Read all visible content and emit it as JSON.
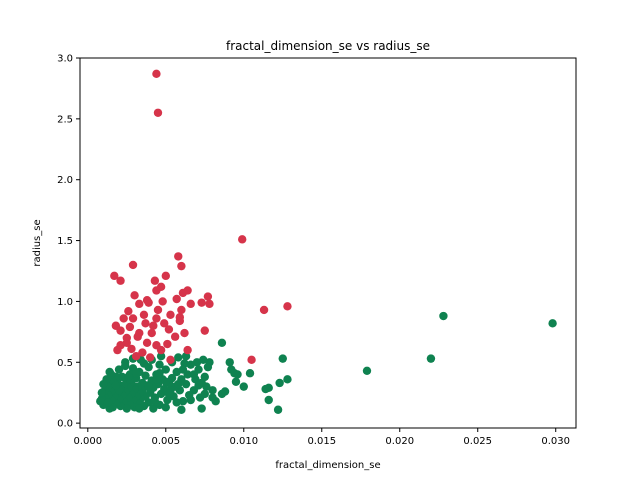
{
  "chart_data": {
    "type": "scatter",
    "title": "fractal_dimension_se vs radius_se",
    "xlabel": "fractal_dimension_se",
    "ylabel": "radius_se",
    "xlim": [
      -0.0005,
      0.0313
    ],
    "ylim": [
      -0.04,
      3.0
    ],
    "xticks": [
      {
        "value": 0.0,
        "label": "0.000"
      },
      {
        "value": 0.005,
        "label": "0.005"
      },
      {
        "value": 0.01,
        "label": "0.010"
      },
      {
        "value": 0.015,
        "label": "0.015"
      },
      {
        "value": 0.02,
        "label": "0.020"
      },
      {
        "value": 0.025,
        "label": "0.025"
      },
      {
        "value": 0.03,
        "label": "0.030"
      }
    ],
    "yticks": [
      {
        "value": 0.0,
        "label": "0.0"
      },
      {
        "value": 0.5,
        "label": "0.5"
      },
      {
        "value": 1.0,
        "label": "1.0"
      },
      {
        "value": 1.5,
        "label": "1.5"
      },
      {
        "value": 2.0,
        "label": "2.0"
      },
      {
        "value": 2.5,
        "label": "2.5"
      },
      {
        "value": 3.0,
        "label": "3.0"
      }
    ],
    "grid": false,
    "legend": "none",
    "series": [
      {
        "color": "#0f8250",
        "points": [
          [
            0.0298,
            0.82
          ],
          [
            0.0228,
            0.88
          ],
          [
            0.022,
            0.53
          ],
          [
            0.0179,
            0.43
          ],
          [
            0.0125,
            0.53
          ],
          [
            0.0128,
            0.36
          ],
          [
            0.0123,
            0.33
          ],
          [
            0.0122,
            0.11
          ],
          [
            0.0116,
            0.29
          ],
          [
            0.0114,
            0.28
          ],
          [
            0.0116,
            0.19
          ],
          [
            0.0104,
            0.41
          ],
          [
            0.01,
            0.3
          ],
          [
            0.0096,
            0.4
          ],
          [
            0.0095,
            0.34
          ],
          [
            0.0094,
            0.41
          ],
          [
            0.0092,
            0.44
          ],
          [
            0.0091,
            0.5
          ],
          [
            0.0088,
            0.26
          ],
          [
            0.0086,
            0.66
          ],
          [
            0.0086,
            0.24
          ],
          [
            0.0082,
            0.18
          ],
          [
            0.008,
            0.21
          ],
          [
            0.008,
            0.27
          ],
          [
            0.0078,
            0.5
          ],
          [
            0.0077,
            0.46
          ],
          [
            0.0076,
            0.3
          ],
          [
            0.0075,
            0.38
          ],
          [
            0.0074,
            0.52
          ],
          [
            0.0073,
            0.12
          ],
          [
            0.0073,
            0.33
          ],
          [
            0.0072,
            0.21
          ],
          [
            0.0071,
            0.44
          ],
          [
            0.007,
            0.5
          ],
          [
            0.0069,
            0.36
          ],
          [
            0.0068,
            0.27
          ],
          [
            0.0066,
            0.48
          ],
          [
            0.0065,
            0.23
          ],
          [
            0.0064,
            0.4
          ],
          [
            0.0063,
            0.32
          ],
          [
            0.0062,
            0.49
          ],
          [
            0.0061,
            0.18
          ],
          [
            0.006,
            0.36
          ],
          [
            0.006,
            0.11
          ],
          [
            0.0059,
            0.27
          ],
          [
            0.0058,
            0.54
          ],
          [
            0.0057,
            0.42
          ],
          [
            0.0056,
            0.3
          ],
          [
            0.0055,
            0.22
          ],
          [
            0.0054,
            0.37
          ],
          [
            0.0054,
            0.5
          ],
          [
            0.0053,
            0.27
          ],
          [
            0.0052,
            0.33
          ],
          [
            0.0051,
            0.19
          ],
          [
            0.005,
            0.44
          ],
          [
            0.005,
            0.13
          ],
          [
            0.0049,
            0.28
          ],
          [
            0.0048,
            0.36
          ],
          [
            0.0047,
            0.24
          ],
          [
            0.0046,
            0.48
          ],
          [
            0.0046,
            0.15
          ],
          [
            0.0045,
            0.32
          ],
          [
            0.0044,
            0.4
          ],
          [
            0.0043,
            0.21
          ],
          [
            0.0042,
            0.29
          ],
          [
            0.0042,
            0.12
          ],
          [
            0.0041,
            0.35
          ],
          [
            0.004,
            0.25
          ],
          [
            0.0039,
            0.46
          ],
          [
            0.0039,
            0.17
          ],
          [
            0.0038,
            0.31
          ],
          [
            0.0037,
            0.22
          ],
          [
            0.0037,
            0.39
          ],
          [
            0.0036,
            0.14
          ],
          [
            0.0035,
            0.27
          ],
          [
            0.0035,
            0.33
          ],
          [
            0.0034,
            0.2
          ],
          [
            0.0033,
            0.42
          ],
          [
            0.0033,
            0.25
          ],
          [
            0.0032,
            0.16
          ],
          [
            0.0032,
            0.3
          ],
          [
            0.0031,
            0.37
          ],
          [
            0.0031,
            0.22
          ],
          [
            0.003,
            0.13
          ],
          [
            0.003,
            0.28
          ],
          [
            0.0029,
            0.45
          ],
          [
            0.0029,
            0.19
          ],
          [
            0.0028,
            0.33
          ],
          [
            0.0028,
            0.24
          ],
          [
            0.0027,
            0.15
          ],
          [
            0.0027,
            0.4
          ],
          [
            0.0026,
            0.29
          ],
          [
            0.0026,
            0.21
          ],
          [
            0.0025,
            0.35
          ],
          [
            0.0025,
            0.12
          ],
          [
            0.0024,
            0.26
          ],
          [
            0.0024,
            0.5
          ],
          [
            0.0023,
            0.18
          ],
          [
            0.0023,
            0.31
          ],
          [
            0.0022,
            0.23
          ],
          [
            0.0022,
            0.38
          ],
          [
            0.0021,
            0.14
          ],
          [
            0.0021,
            0.28
          ],
          [
            0.002,
            0.2
          ],
          [
            0.002,
            0.44
          ],
          [
            0.0019,
            0.33
          ],
          [
            0.0019,
            0.25
          ],
          [
            0.0018,
            0.16
          ],
          [
            0.0018,
            0.38
          ],
          [
            0.0017,
            0.22
          ],
          [
            0.0017,
            0.29
          ],
          [
            0.0016,
            0.13
          ],
          [
            0.0016,
            0.34
          ],
          [
            0.0015,
            0.19
          ],
          [
            0.0015,
            0.26
          ],
          [
            0.0014,
            0.42
          ],
          [
            0.0014,
            0.12
          ],
          [
            0.0013,
            0.23
          ],
          [
            0.0013,
            0.3
          ],
          [
            0.0012,
            0.17
          ],
          [
            0.0012,
            0.36
          ],
          [
            0.0011,
            0.21
          ],
          [
            0.0011,
            0.27
          ],
          [
            0.001,
            0.15
          ],
          [
            0.001,
            0.32
          ],
          [
            0.0009,
            0.2
          ],
          [
            0.0009,
            0.25
          ],
          [
            0.0008,
            0.18
          ],
          [
            0.0034,
            0.52
          ],
          [
            0.0029,
            0.53
          ],
          [
            0.0041,
            0.52
          ],
          [
            0.0047,
            0.55
          ],
          [
            0.0063,
            0.55
          ],
          [
            0.0024,
            0.47
          ],
          [
            0.0036,
            0.49
          ],
          [
            0.0044,
            0.36
          ],
          [
            0.0031,
            0.41
          ],
          [
            0.0027,
            0.36
          ],
          [
            0.0039,
            0.3
          ],
          [
            0.0052,
            0.24
          ],
          [
            0.0057,
            0.17
          ],
          [
            0.0043,
            0.18
          ],
          [
            0.0033,
            0.12
          ],
          [
            0.0026,
            0.38
          ],
          [
            0.002,
            0.27
          ],
          [
            0.0018,
            0.31
          ],
          [
            0.0015,
            0.4
          ],
          [
            0.0013,
            0.17
          ],
          [
            0.0046,
            0.41
          ],
          [
            0.005,
            0.34
          ],
          [
            0.0061,
            0.44
          ],
          [
            0.0068,
            0.4
          ],
          [
            0.0071,
            0.31
          ],
          [
            0.0075,
            0.24
          ],
          [
            0.0066,
            0.19
          ],
          [
            0.0058,
            0.32
          ]
        ]
      },
      {
        "color": "#d6344a",
        "points": [
          [
            0.0044,
            2.87
          ],
          [
            0.0045,
            2.55
          ],
          [
            0.0099,
            1.51
          ],
          [
            0.0058,
            1.37
          ],
          [
            0.0017,
            1.21
          ],
          [
            0.0029,
            1.3
          ],
          [
            0.0021,
            1.17
          ],
          [
            0.0043,
            1.17
          ],
          [
            0.005,
            1.21
          ],
          [
            0.006,
            1.29
          ],
          [
            0.0061,
            1.07
          ],
          [
            0.0064,
            1.09
          ],
          [
            0.0047,
            1.12
          ],
          [
            0.0044,
            1.09
          ],
          [
            0.0077,
            1.04
          ],
          [
            0.0078,
            0.98
          ],
          [
            0.0073,
            0.99
          ],
          [
            0.0057,
            1.02
          ],
          [
            0.0039,
            0.99
          ],
          [
            0.003,
            1.05
          ],
          [
            0.0033,
            0.98
          ],
          [
            0.0045,
            0.93
          ],
          [
            0.0048,
            1.0
          ],
          [
            0.0053,
            0.89
          ],
          [
            0.006,
            0.93
          ],
          [
            0.0113,
            0.93
          ],
          [
            0.0128,
            0.96
          ],
          [
            0.0059,
            0.87
          ],
          [
            0.0044,
            0.86
          ],
          [
            0.0037,
            0.82
          ],
          [
            0.0023,
            0.86
          ],
          [
            0.0018,
            0.8
          ],
          [
            0.0027,
            0.79
          ],
          [
            0.0052,
            0.77
          ],
          [
            0.0062,
            0.74
          ],
          [
            0.0041,
            0.74
          ],
          [
            0.0075,
            0.76
          ],
          [
            0.0033,
            0.74
          ],
          [
            0.0021,
            0.76
          ],
          [
            0.0049,
            0.82
          ],
          [
            0.0056,
            0.71
          ],
          [
            0.0038,
            0.66
          ],
          [
            0.0044,
            0.64
          ],
          [
            0.0025,
            0.66
          ],
          [
            0.0028,
            0.61
          ],
          [
            0.0035,
            0.58
          ],
          [
            0.0019,
            0.6
          ],
          [
            0.0064,
            0.6
          ],
          [
            0.0047,
            0.6
          ],
          [
            0.004,
            0.54
          ],
          [
            0.0031,
            0.55
          ],
          [
            0.0105,
            0.52
          ],
          [
            0.0053,
            0.52
          ],
          [
            0.0025,
            0.7
          ],
          [
            0.0032,
            0.71
          ],
          [
            0.0059,
            0.84
          ],
          [
            0.0026,
            0.92
          ],
          [
            0.0036,
            0.89
          ],
          [
            0.0042,
            0.8
          ],
          [
            0.0051,
            0.65
          ],
          [
            0.0021,
            0.64
          ],
          [
            0.0029,
            0.86
          ],
          [
            0.0038,
            1.01
          ],
          [
            0.0066,
            0.98
          ]
        ]
      }
    ]
  }
}
